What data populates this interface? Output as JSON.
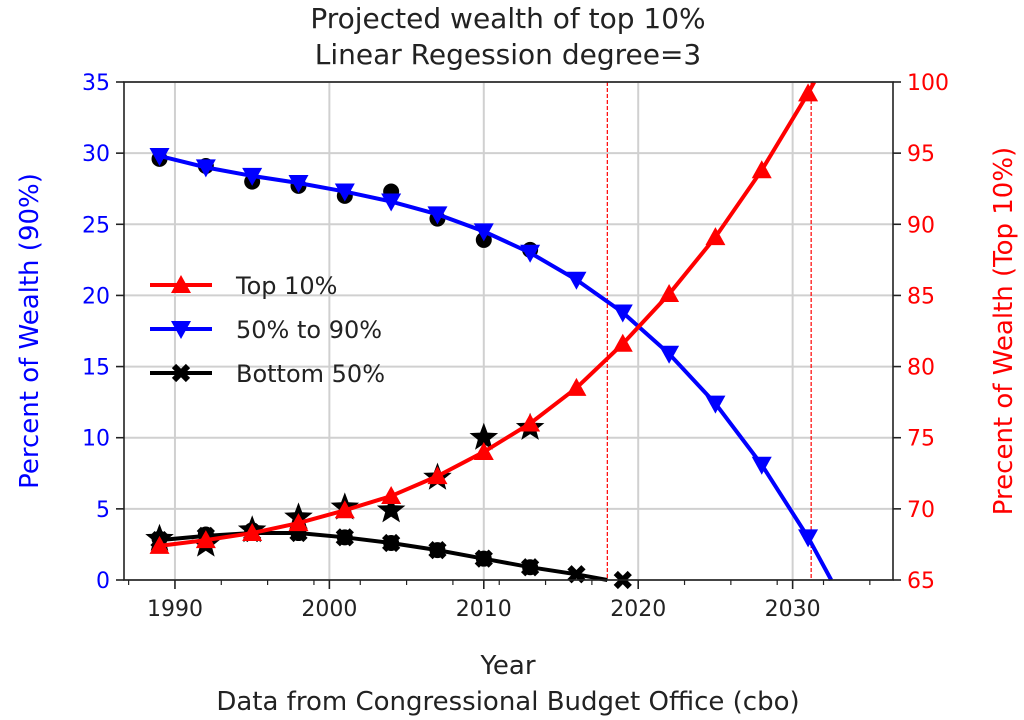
{
  "chart_data": {
    "type": "line",
    "title": "Projected wealth of top 10%",
    "subtitle": "Linear Regession degree=3",
    "xlabel": "Year",
    "caption": "Data from Congressional Budget Office (cbo)",
    "ylabel_left": "Percent of Wealth (90%)",
    "ylabel_right": "Precent of Wealth (Top 10%)",
    "xlim": [
      1986.7,
      2036.5
    ],
    "ylim_left": [
      0,
      35
    ],
    "ylim_right": [
      65,
      100
    ],
    "x_ticks": [
      1990,
      2000,
      2010,
      2020,
      2030
    ],
    "y_ticks_left": [
      0,
      5,
      10,
      15,
      20,
      25,
      30,
      35
    ],
    "y_ticks_right": [
      65,
      70,
      75,
      80,
      85,
      90,
      95,
      100
    ],
    "grid": true,
    "legend_placement": "center-left",
    "colors": {
      "left_axis": "#0000ff",
      "right_axis": "#ff0000",
      "grid": "#d0d0d0"
    },
    "vlines": [
      2018,
      2031.2
    ],
    "series": [
      {
        "name": "Top 10%",
        "axis": "right",
        "color": "#ff0000",
        "marker": "triangle-up",
        "x": [
          1989,
          1992,
          1995,
          1998,
          2001,
          2004,
          2007,
          2010,
          2013,
          2016,
          2019,
          2022,
          2025,
          2028,
          2031
        ],
        "y": [
          67.4,
          67.8,
          68.3,
          69.0,
          69.9,
          70.9,
          72.3,
          74.0,
          76.0,
          78.5,
          81.6,
          85.1,
          89.1,
          93.8,
          99.2
        ],
        "line_end": [
          2031.4,
          100
        ]
      },
      {
        "name": "50% to 90%",
        "axis": "left",
        "color": "#0000ff",
        "marker": "triangle-down",
        "x": [
          1989,
          1992,
          1995,
          1998,
          2001,
          2004,
          2007,
          2010,
          2013,
          2016,
          2019,
          2022,
          2025,
          2028,
          2031
        ],
        "y": [
          29.8,
          29.0,
          28.4,
          27.9,
          27.3,
          26.6,
          25.7,
          24.5,
          23.0,
          21.1,
          18.8,
          15.9,
          12.4,
          8.1,
          3.0
        ],
        "line_end": [
          2032.5,
          0
        ]
      },
      {
        "name": "Bottom 50%",
        "axis": "left",
        "color": "#000000",
        "marker": "x",
        "x": [
          1989,
          1992,
          1995,
          1998,
          2001,
          2004,
          2007,
          2010,
          2013,
          2016,
          2019
        ],
        "y": [
          2.8,
          3.1,
          3.3,
          3.3,
          3.0,
          2.6,
          2.1,
          1.5,
          0.9,
          0.4,
          0.0
        ],
        "line_to": 2018
      }
    ],
    "actual_data": [
      {
        "axis": "right",
        "marker": "star",
        "x": [
          1989,
          1992,
          1995,
          1998,
          2001,
          2004,
          2007,
          2010,
          2013
        ],
        "y": [
          67.9,
          67.5,
          68.5,
          69.4,
          70.1,
          69.9,
          72.2,
          75.0,
          75.7
        ]
      },
      {
        "axis": "left",
        "marker": "circle",
        "x": [
          1989,
          1992,
          1995,
          1998,
          2001,
          2004,
          2007,
          2010,
          2013
        ],
        "y": [
          29.6,
          29.1,
          28.0,
          27.7,
          27.0,
          27.3,
          25.4,
          23.9,
          23.2
        ]
      },
      {
        "axis": "left",
        "marker": "circle",
        "x": [
          1989,
          1992,
          1995,
          1998,
          2001,
          2004,
          2007,
          2010,
          2013
        ],
        "y": [
          2.9,
          3.2,
          3.5,
          3.3,
          3.0,
          2.6,
          2.1,
          1.5,
          0.9
        ]
      }
    ]
  }
}
